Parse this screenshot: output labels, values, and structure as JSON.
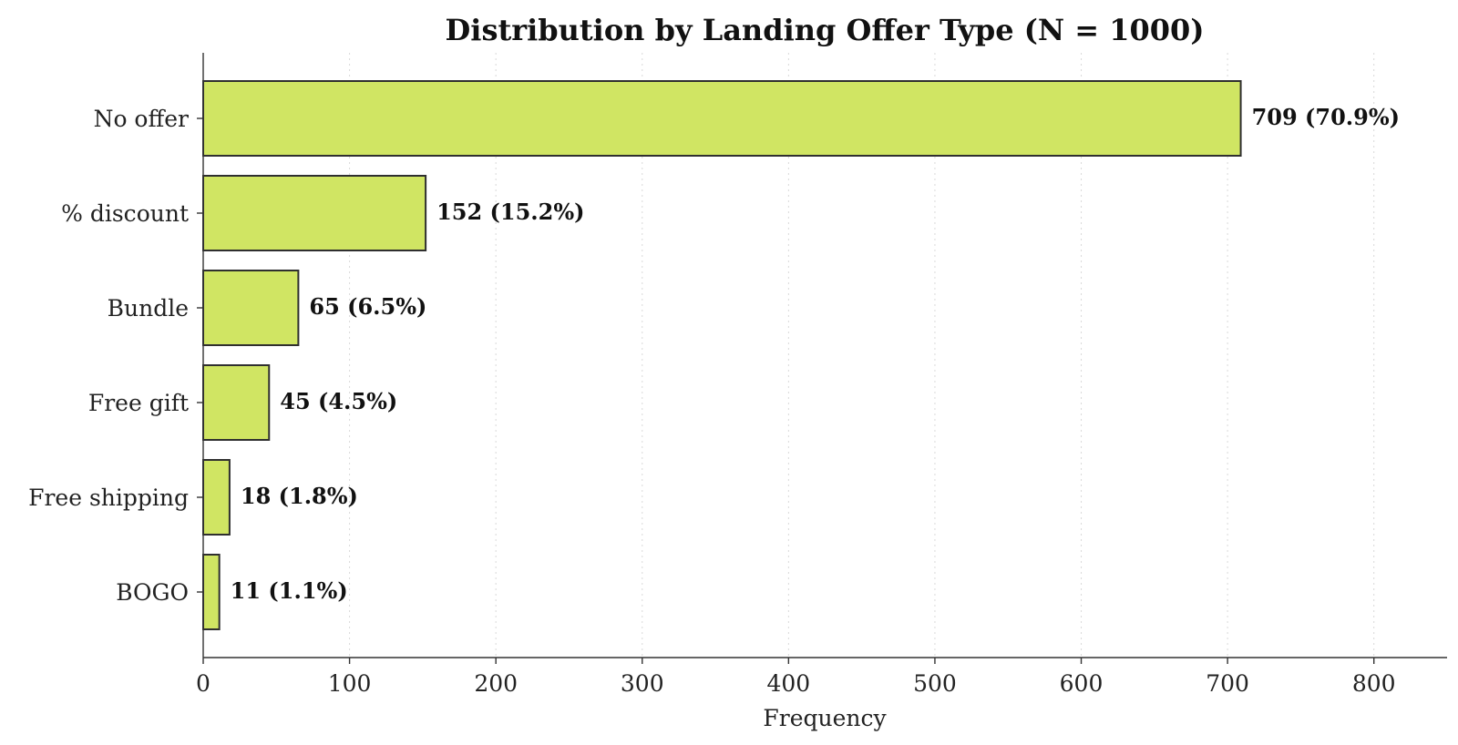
{
  "chart_data": {
    "type": "bar",
    "orientation": "horizontal",
    "title": "Distribution by Landing Offer Type (N = 1000)",
    "xlabel": "Frequency",
    "ylabel": "",
    "categories": [
      "No offer",
      "% discount",
      "Bundle",
      "Free gift",
      "Free shipping",
      "BOGO"
    ],
    "values": [
      709,
      152,
      65,
      45,
      18,
      11
    ],
    "data_labels": [
      "709 (70.9%)",
      "152 (15.2%)",
      "65 (6.5%)",
      "45 (4.5%)",
      "18 (1.8%)",
      "11 (1.1%)"
    ],
    "xlim": [
      0,
      850
    ],
    "x_ticks": [
      0,
      100,
      200,
      300,
      400,
      500,
      600,
      700,
      800
    ],
    "grid": "x-only, dotted",
    "bar_color": "#d0e563",
    "edge_color": "#2f2f2f"
  }
}
